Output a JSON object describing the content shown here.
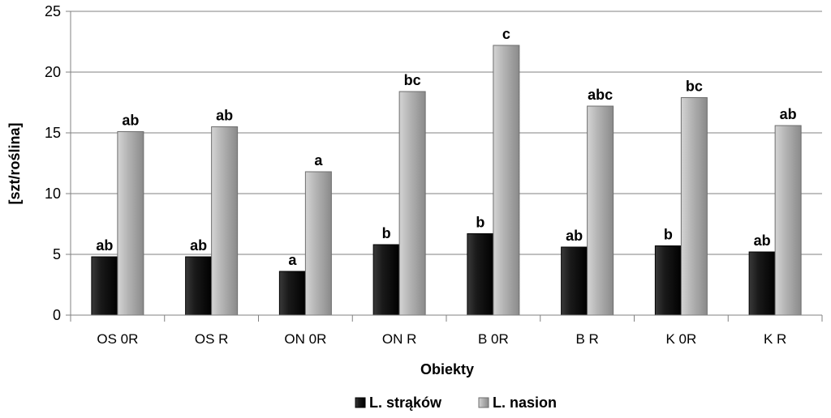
{
  "chart_data": {
    "type": "bar",
    "categories": [
      "OS 0R",
      "OS R",
      "ON 0R",
      "ON R",
      "B 0R",
      "B R",
      "K 0R",
      "K R"
    ],
    "series": [
      {
        "name": "L. strąków",
        "color": "#111111",
        "values": [
          4.8,
          4.8,
          3.6,
          5.8,
          6.7,
          5.6,
          5.7,
          5.2
        ],
        "labels": [
          "ab",
          "ab",
          "a",
          "b",
          "b",
          "ab",
          "b",
          "ab"
        ]
      },
      {
        "name": "L. nasion",
        "color": "#b0b0b0",
        "values": [
          15.1,
          15.5,
          11.8,
          18.4,
          22.2,
          17.2,
          17.9,
          15.6
        ],
        "labels": [
          "ab",
          "ab",
          "a",
          "bc",
          "c",
          "abc",
          "bc",
          "ab"
        ]
      }
    ],
    "yticks": [
      "0",
      "5",
      "10",
      "15",
      "20",
      "25"
    ],
    "ylim": [
      0,
      25
    ],
    "xlabel": "Obiekty",
    "ylabel": "[szt/roślina]",
    "grid": true,
    "legend": "bottom"
  }
}
